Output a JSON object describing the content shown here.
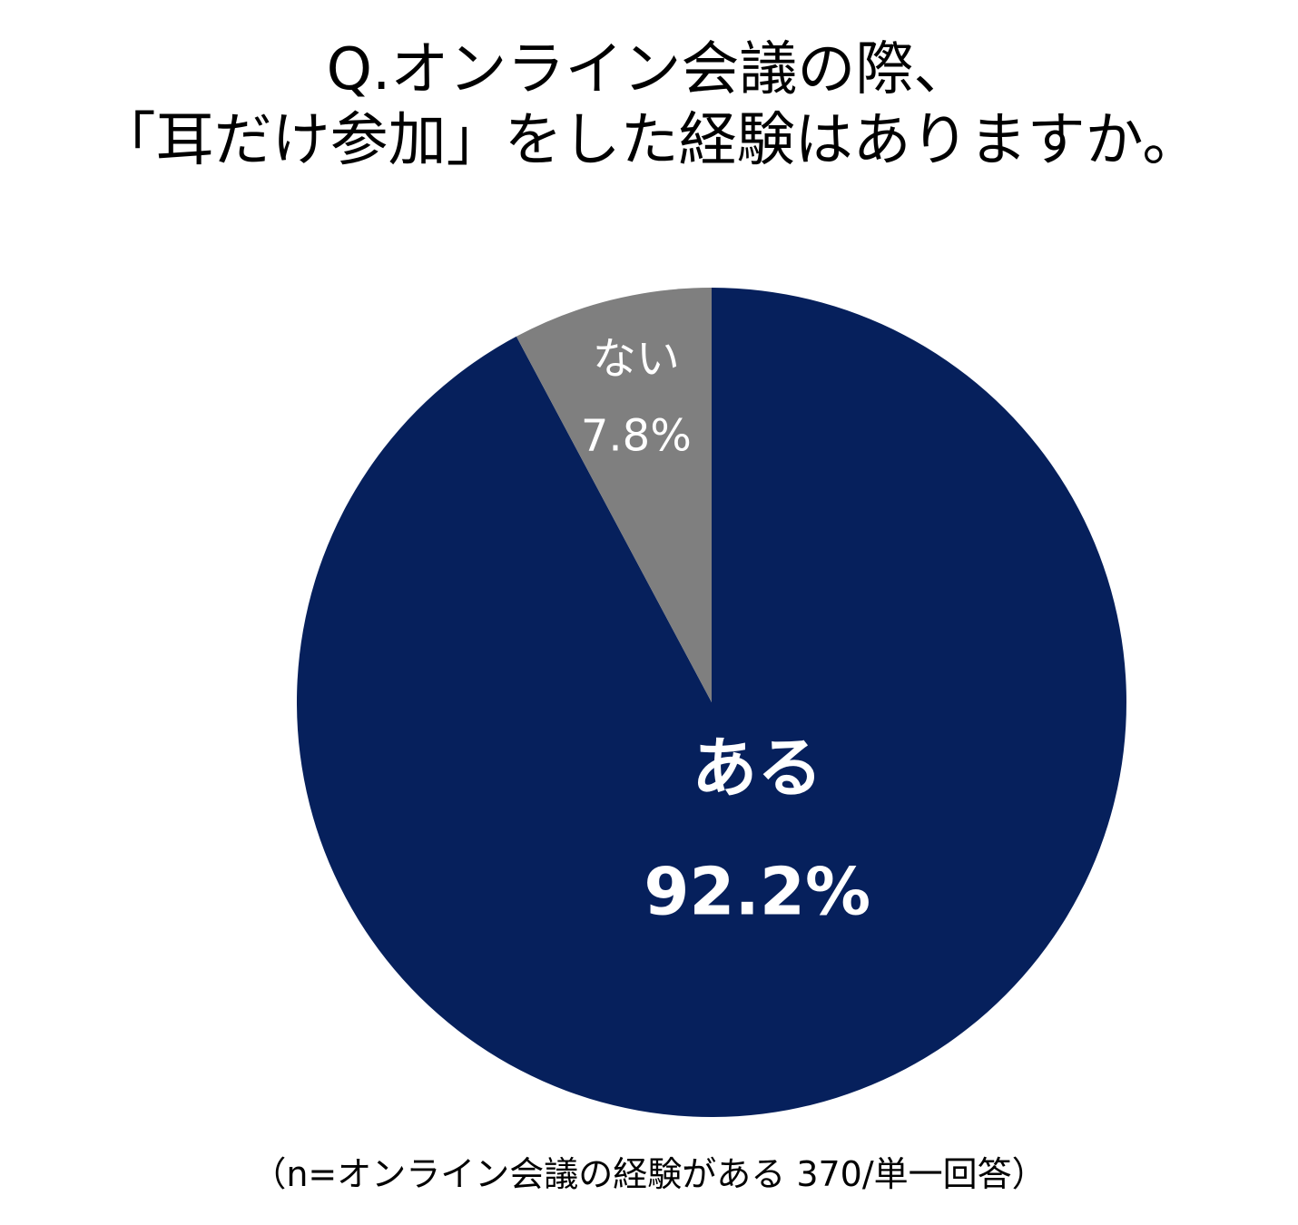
{
  "title": {
    "line1": "Q.オンライン会議の際、",
    "line2": "「耳だけ参加」をした経験はありますか。"
  },
  "colors": {
    "aru": "#06205C",
    "nai": "#7F7F7F",
    "label": "#FFFFFF"
  },
  "chart_data": {
    "type": "pie",
    "title": "Q.オンライン会議の際、「耳だけ参加」をした経験はありますか。",
    "start": "12 o'clock",
    "direction": "clockwise",
    "slices": [
      {
        "label": "ある",
        "value": 92.2,
        "value_label": "92.2%",
        "color": "#06205C"
      },
      {
        "label": "ない",
        "value": 7.8,
        "value_label": "7.8%",
        "color": "#7F7F7F"
      }
    ]
  },
  "footnote": "（n=オンライン会議の経験がある 370/単一回答）"
}
